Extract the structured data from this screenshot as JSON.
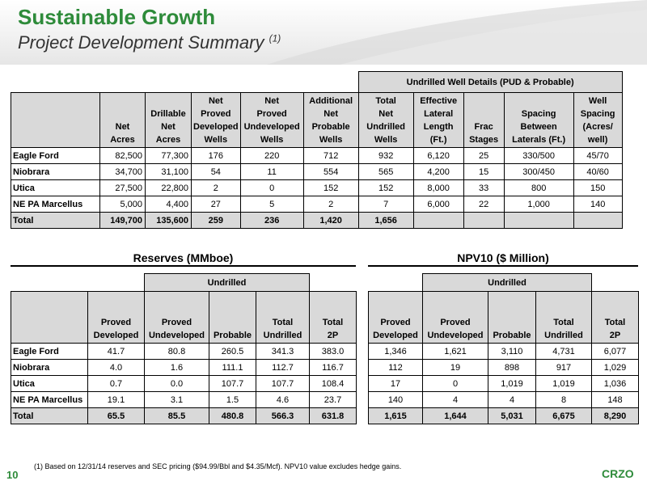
{
  "header": {
    "title": "Sustainable Growth",
    "subtitle": "Project Development Summary",
    "subtitle_note": "(1)"
  },
  "top_table": {
    "group_label": "Undrilled Well Details (PUD & Probable)",
    "columns": [
      "Net\nAcres",
      "Drillable\nNet\nAcres",
      "Net\nProved\nDeveloped\nWells",
      "Net\nProved\nUndeveloped\nWells",
      "Additional\nNet\nProbable\nWells",
      "Total\nNet\nUndrilled\nWells",
      "Effective\nLateral\nLength\n(Ft.)",
      "Frac\nStages",
      "Spacing\nBetween\nLaterals (Ft.)",
      "Well\nSpacing\n(Acres/\nwell)"
    ],
    "rows": [
      {
        "name": "Eagle Ford",
        "cells": [
          "82,500",
          "77,300",
          "176",
          "220",
          "712",
          "932",
          "6,120",
          "25",
          "330/500",
          "45/70"
        ]
      },
      {
        "name": "Niobrara",
        "cells": [
          "34,700",
          "31,100",
          "54",
          "11",
          "554",
          "565",
          "4,200",
          "15",
          "300/450",
          "40/60"
        ]
      },
      {
        "name": "Utica",
        "cells": [
          "27,500",
          "22,800",
          "2",
          "0",
          "152",
          "152",
          "8,000",
          "33",
          "800",
          "150"
        ]
      },
      {
        "name": "NE PA Marcellus",
        "cells": [
          "5,000",
          "4,400",
          "27",
          "5",
          "2",
          "7",
          "6,000",
          "22",
          "1,000",
          "140"
        ]
      },
      {
        "name": "Total",
        "cells": [
          "149,700",
          "135,600",
          "259",
          "236",
          "1,420",
          "1,656",
          "",
          "",
          "",
          ""
        ]
      }
    ]
  },
  "reserves": {
    "title": "Reserves (MMboe)",
    "group_label": "Undrilled",
    "columns": [
      "Proved\nDeveloped",
      "Proved\nUndeveloped",
      "Probable",
      "Total\nUndrilled",
      "Total\n2P"
    ],
    "rows": [
      {
        "name": "Eagle Ford",
        "cells": [
          "41.7",
          "80.8",
          "260.5",
          "341.3",
          "383.0"
        ]
      },
      {
        "name": "Niobrara",
        "cells": [
          "4.0",
          "1.6",
          "111.1",
          "112.7",
          "116.7"
        ]
      },
      {
        "name": "Utica",
        "cells": [
          "0.7",
          "0.0",
          "107.7",
          "107.7",
          "108.4"
        ]
      },
      {
        "name": "NE PA Marcellus",
        "cells": [
          "19.1",
          "3.1",
          "1.5",
          "4.6",
          "23.7"
        ]
      },
      {
        "name": "Total",
        "cells": [
          "65.5",
          "85.5",
          "480.8",
          "566.3",
          "631.8"
        ]
      }
    ]
  },
  "npv": {
    "title": "NPV10 ($ Million)",
    "group_label": "Undrilled",
    "columns": [
      "Proved\nDeveloped",
      "Proved\nUndeveloped",
      "Probable",
      "Total\nUndrilled",
      "Total\n2P"
    ],
    "rows": [
      {
        "cells": [
          "1,346",
          "1,621",
          "3,110",
          "4,731",
          "6,077"
        ]
      },
      {
        "cells": [
          "112",
          "19",
          "898",
          "917",
          "1,029"
        ]
      },
      {
        "cells": [
          "17",
          "0",
          "1,019",
          "1,019",
          "1,036"
        ]
      },
      {
        "cells": [
          "140",
          "4",
          "4",
          "8",
          "148"
        ]
      },
      {
        "cells": [
          "1,615",
          "1,644",
          "5,031",
          "6,675",
          "8,290"
        ]
      }
    ]
  },
  "footer": {
    "footnote": "(1)   Based on 12/31/14 reserves and SEC pricing ($94.99/Bbl and $4.35/Mcf). NPV10 value excludes hedge gains.",
    "page_number": "10",
    "logo": "CRZO"
  }
}
